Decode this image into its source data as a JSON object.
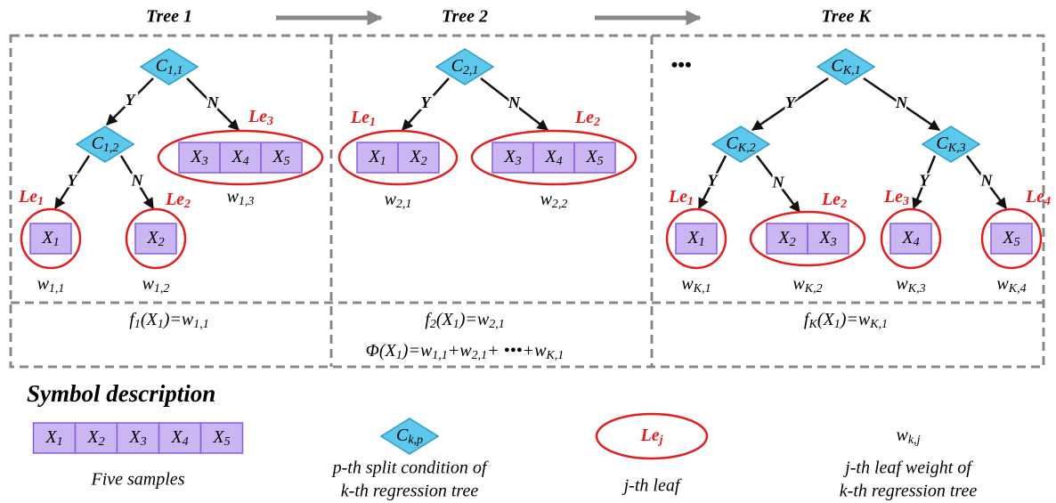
{
  "trees": [
    {
      "title": "Tree 1",
      "splits": [
        [
          "C",
          "1,1"
        ],
        [
          "C",
          "1,2"
        ]
      ],
      "edges": [
        "Y",
        "N",
        "Y",
        "N"
      ],
      "leaves": [
        {
          "tag": [
            "Le",
            "1"
          ],
          "samples": [
            [
              "X",
              "1"
            ]
          ],
          "weight": [
            "w",
            "1,1"
          ]
        },
        {
          "tag": [
            "Le",
            "2"
          ],
          "samples": [
            [
              "X",
              "2"
            ]
          ],
          "weight": [
            "w",
            "1,2"
          ]
        },
        {
          "tag": [
            "Le",
            "3"
          ],
          "samples": [
            [
              "X",
              "3"
            ],
            [
              "X",
              "4"
            ],
            [
              "X",
              "5"
            ]
          ],
          "weight": [
            "w",
            "1,3"
          ]
        }
      ],
      "formulas": [
        [
          [
            "f",
            "1"
          ],
          [
            "(X",
            "1"
          ],
          [
            ")=w",
            "1,1"
          ]
        ]
      ]
    },
    {
      "title": "Tree 2",
      "splits": [
        [
          "C",
          "2,1"
        ]
      ],
      "edges": [
        "Y",
        "N"
      ],
      "leaves": [
        {
          "tag": [
            "Le",
            "1"
          ],
          "samples": [
            [
              "X",
              "1"
            ],
            [
              "X",
              "2"
            ]
          ],
          "weight": [
            "w",
            "2,1"
          ]
        },
        {
          "tag": [
            "Le",
            "2"
          ],
          "samples": [
            [
              "X",
              "3"
            ],
            [
              "X",
              "4"
            ],
            [
              "X",
              "5"
            ]
          ],
          "weight": [
            "w",
            "2,2"
          ]
        }
      ],
      "formulas": [
        [
          [
            "f",
            "2"
          ],
          [
            "(X",
            "1"
          ],
          [
            ")=w",
            "2,1"
          ]
        ],
        [
          [
            "Φ(X",
            "1"
          ],
          [
            ")=w",
            "1,1"
          ],
          [
            "+w",
            "2,1"
          ],
          [
            "+ •••+w",
            "K,1"
          ]
        ]
      ]
    },
    {
      "title": "Tree K",
      "splits": [
        [
          "C",
          "K,1"
        ],
        [
          "C",
          "K,2"
        ],
        [
          "C",
          "K,3"
        ]
      ],
      "edges": [
        "Y",
        "N",
        "Y",
        "N",
        "Y",
        "N"
      ],
      "leaves": [
        {
          "tag": [
            "Le",
            "1"
          ],
          "samples": [
            [
              "X",
              "1"
            ]
          ],
          "weight": [
            "w",
            "K,1"
          ]
        },
        {
          "tag": [
            "Le",
            "2"
          ],
          "samples": [
            [
              "X",
              "2"
            ],
            [
              "X",
              "3"
            ]
          ],
          "weight": [
            "w",
            "K,2"
          ]
        },
        {
          "tag": [
            "Le",
            "3"
          ],
          "samples": [
            [
              "X",
              "4"
            ]
          ],
          "weight": [
            "w",
            "K,3"
          ]
        },
        {
          "tag": [
            "Le",
            "4"
          ],
          "samples": [
            [
              "X",
              "5"
            ]
          ],
          "weight": [
            "w",
            "K,4"
          ]
        }
      ],
      "formulas": [
        [
          [
            "f",
            "K"
          ],
          [
            "(X",
            "1"
          ],
          [
            ")=w",
            "K,1"
          ]
        ]
      ]
    }
  ],
  "ellipsis": "•••",
  "legend": {
    "title": "Symbol description",
    "samples": [
      [
        "X",
        "1"
      ],
      [
        "X",
        "2"
      ],
      [
        "X",
        "3"
      ],
      [
        "X",
        "4"
      ],
      [
        "X",
        "5"
      ]
    ],
    "samples_caption": "Five samples",
    "split": [
      "C",
      "k,p"
    ],
    "split_caption": [
      "p-th split condition of",
      "k-th regression tree"
    ],
    "leaf": [
      "Le",
      "j"
    ],
    "leaf_caption": "j-th leaf",
    "weight": [
      "w",
      "k,j"
    ],
    "weight_caption": [
      "j-th leaf weight of",
      "k-th regression tree"
    ]
  }
}
